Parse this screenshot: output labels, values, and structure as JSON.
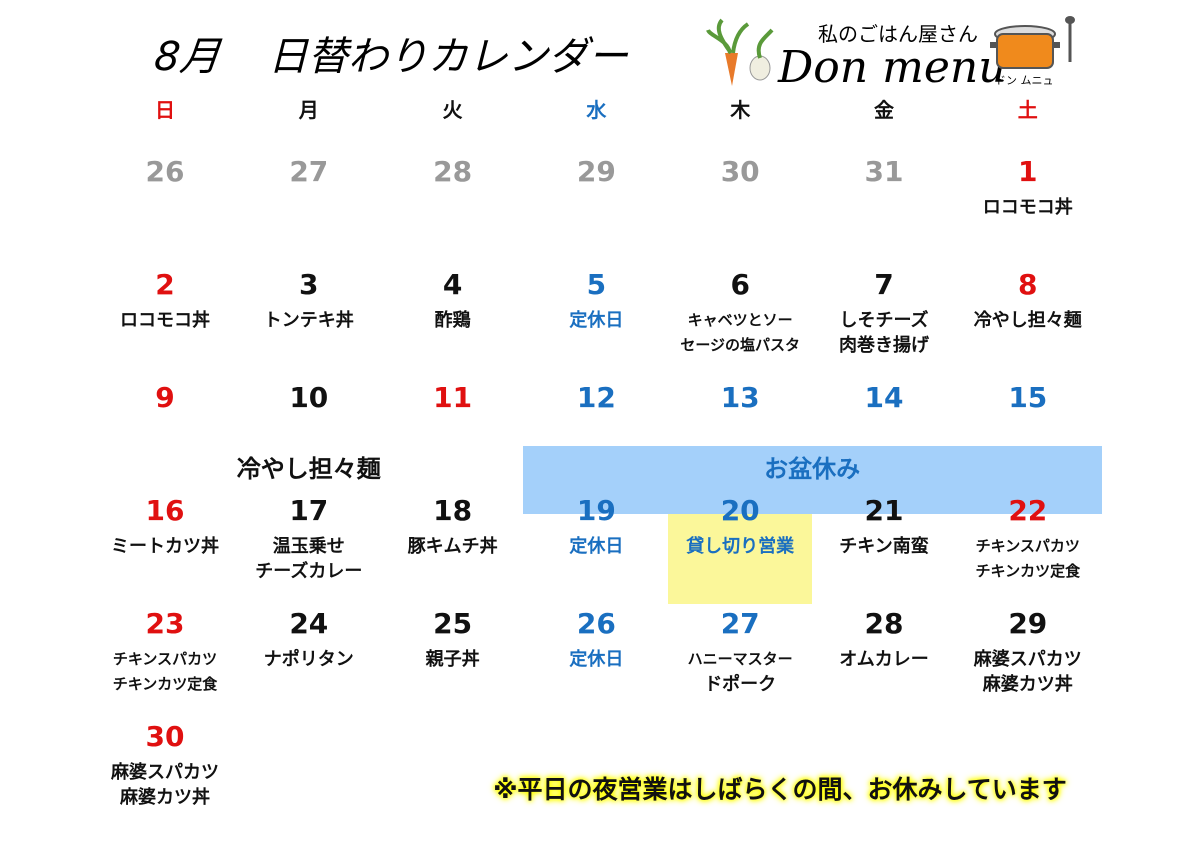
{
  "header": {
    "month": "8月",
    "title": "日替わりカレンダー",
    "logo_subtitle": "私のごはん屋さん",
    "logo_name": "Don menu",
    "logo_kana": "ドン ムニュ"
  },
  "weekdays": [
    {
      "label": "日",
      "color": "#e01010"
    },
    {
      "label": "月",
      "color": "#111"
    },
    {
      "label": "火",
      "color": "#111"
    },
    {
      "label": "水",
      "color": "#1a6fc0"
    },
    {
      "label": "木",
      "color": "#111"
    },
    {
      "label": "金",
      "color": "#111"
    },
    {
      "label": "土",
      "color": "#e01010"
    }
  ],
  "weeks": [
    [
      {
        "day": 26,
        "color": "#999"
      },
      {
        "day": 27,
        "color": "#999"
      },
      {
        "day": 28,
        "color": "#999"
      },
      {
        "day": 29,
        "color": "#999"
      },
      {
        "day": 30,
        "color": "#999"
      },
      {
        "day": 31,
        "color": "#999"
      },
      {
        "day": 1,
        "color": "#e01010",
        "menu": [
          "ロコモコ丼"
        ]
      }
    ],
    [
      {
        "day": 2,
        "color": "#e01010",
        "menu": [
          "ロコモコ丼"
        ]
      },
      {
        "day": 3,
        "color": "#111",
        "menu": [
          "トンテキ丼"
        ]
      },
      {
        "day": 4,
        "color": "#111",
        "menu": [
          "酢鶏"
        ]
      },
      {
        "day": 5,
        "color": "#1a6fc0",
        "menu": [
          "定休日"
        ],
        "menu_color": "#1a6fc0"
      },
      {
        "day": 6,
        "color": "#111",
        "menu": [
          "キャベツとソー",
          "セージの塩パスタ"
        ]
      },
      {
        "day": 7,
        "color": "#111",
        "menu": [
          "しそチーズ",
          "肉巻き揚げ"
        ]
      },
      {
        "day": 8,
        "color": "#e01010",
        "menu": [
          "冷やし担々麺"
        ]
      }
    ],
    [
      {
        "day": 9,
        "color": "#e01010"
      },
      {
        "day": 10,
        "color": "#111"
      },
      {
        "day": 11,
        "color": "#e01010"
      },
      {
        "day": 12,
        "color": "#1a6fc0"
      },
      {
        "day": 13,
        "color": "#1a6fc0"
      },
      {
        "day": 14,
        "color": "#1a6fc0"
      },
      {
        "day": 15,
        "color": "#1a6fc0"
      }
    ],
    [
      {
        "day": 16,
        "color": "#e01010",
        "menu": [
          "ミートカツ丼"
        ]
      },
      {
        "day": 17,
        "color": "#111",
        "menu": [
          "温玉乗せ",
          "チーズカレー"
        ]
      },
      {
        "day": 18,
        "color": "#111",
        "menu": [
          "豚キムチ丼"
        ]
      },
      {
        "day": 19,
        "color": "#1a6fc0",
        "menu": [
          "定休日"
        ],
        "menu_color": "#1a6fc0"
      },
      {
        "day": 20,
        "color": "#1a6fc0",
        "menu": [
          "貸し切り営業"
        ],
        "menu_color": "#1a6fc0",
        "highlight": "#fbf79a"
      },
      {
        "day": 21,
        "color": "#111",
        "menu": [
          "チキン南蛮"
        ]
      },
      {
        "day": 22,
        "color": "#e01010",
        "menu": [
          "チキンスパカツ",
          "チキンカツ定食"
        ]
      }
    ],
    [
      {
        "day": 23,
        "color": "#e01010",
        "menu": [
          "チキンスパカツ",
          "チキンカツ定食"
        ]
      },
      {
        "day": 24,
        "color": "#111",
        "menu": [
          "ナポリタン"
        ]
      },
      {
        "day": 25,
        "color": "#111",
        "menu": [
          "親子丼"
        ]
      },
      {
        "day": 26,
        "color": "#1a6fc0",
        "menu": [
          "定休日"
        ],
        "menu_color": "#1a6fc0"
      },
      {
        "day": 27,
        "color": "#1a6fc0",
        "menu": [
          "ハニーマスター",
          "ドポーク"
        ]
      },
      {
        "day": 28,
        "color": "#111",
        "menu": [
          "オムカレー"
        ]
      },
      {
        "day": 29,
        "color": "#111",
        "menu": [
          "麻婆スパカツ",
          "麻婆カツ丼"
        ]
      }
    ],
    [
      {
        "day": 30,
        "color": "#e01010",
        "menu": [
          "麻婆スパカツ",
          "麻婆カツ丼"
        ]
      }
    ]
  ],
  "spans": [
    {
      "text": "冷やし担々麺",
      "row": 2,
      "from": 1,
      "to": 1
    },
    {
      "text": "お盆休み",
      "row": 2,
      "from": 3,
      "to": 6,
      "color": "#1a6fc0",
      "background": "#a4d0fa"
    }
  ],
  "notice": "※平日の夜営業はしばらくの間、お休みしています"
}
